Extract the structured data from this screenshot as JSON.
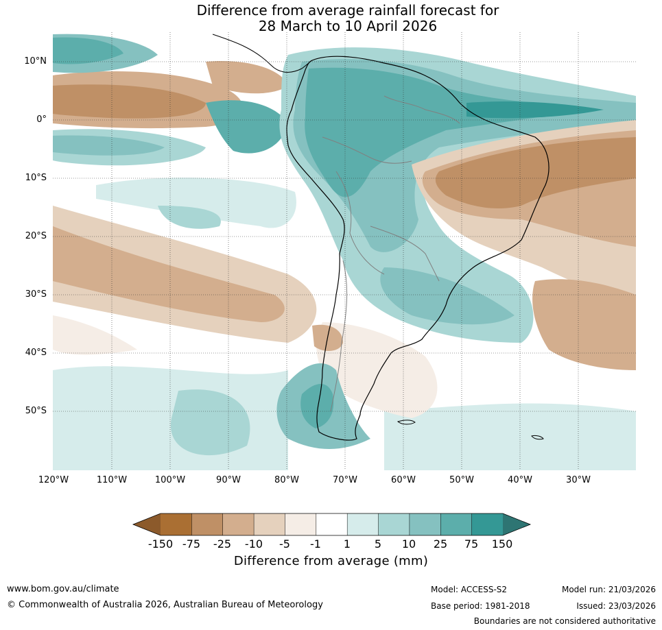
{
  "title_line1": "Difference from average rainfall forecast for",
  "title_line2": "28 March to 10 April 2026",
  "map": {
    "region": "South America",
    "lat_labels": [
      "10°N",
      "0°",
      "10°S",
      "20°S",
      "30°S",
      "40°S",
      "50°S"
    ],
    "lon_labels": [
      "120°W",
      "110°W",
      "100°W",
      "90°W",
      "80°W",
      "70°W",
      "60°W",
      "50°W",
      "40°W",
      "30°W"
    ]
  },
  "colorbar": {
    "title": "Difference from average (mm)",
    "tick_labels": [
      "-150",
      "-75",
      "-25",
      "-10",
      "-5",
      "-1",
      "1",
      "5",
      "10",
      "25",
      "75",
      "150"
    ],
    "colors": [
      "#aa6f33",
      "#bf9066",
      "#d3ae8e",
      "#e5d1bd",
      "#f5ede6",
      "#ffffff",
      "#d6eceb",
      "#a9d6d4",
      "#85c1c0",
      "#5caeab",
      "#349895"
    ],
    "extend_low_color": "#8c5a2b",
    "extend_high_color": "#2e7573"
  },
  "footer": {
    "website": "www.bom.gov.au/climate",
    "copyright": "© Commonwealth of Australia 2026, Australian Bureau of Meteorology",
    "model": "Model: ACCESS-S2",
    "model_run": "Model run: 21/03/2026",
    "base_period": "Base period: 1981-2018",
    "issued": "Issued: 23/03/2026",
    "disclaimer": "Boundaries are not considered authoritative"
  }
}
